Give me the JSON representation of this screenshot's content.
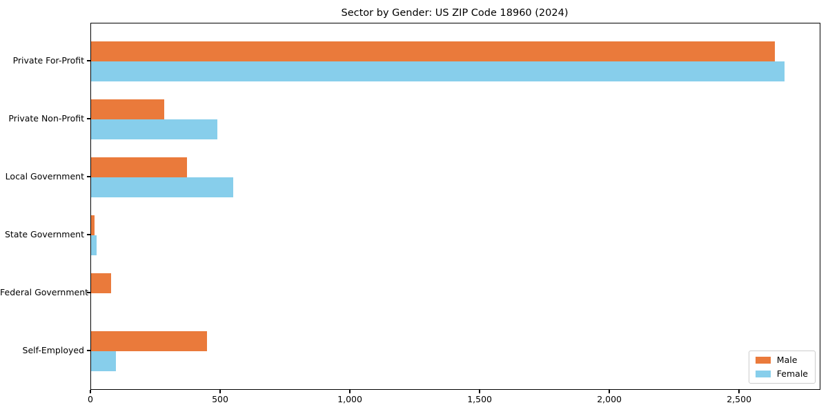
{
  "title": "Sector by Gender: US ZIP Code 18960 (2024)",
  "chart_data": {
    "type": "bar",
    "orientation": "horizontal",
    "title": "Sector by Gender: US ZIP Code 18960 (2024)",
    "categories": [
      "Private For-Profit",
      "Private Non-Profit",
      "Local Government",
      "State Government",
      "Federal Government",
      "Self-Employed"
    ],
    "series": [
      {
        "name": "Male",
        "color": "#ea7a3b",
        "values": [
          2636,
          282,
          370,
          12,
          77,
          447
        ]
      },
      {
        "name": "Female",
        "color": "#87ceeb",
        "values": [
          2672,
          486,
          549,
          21,
          0,
          96
        ]
      }
    ],
    "xlabel": "",
    "ylabel": "",
    "xlim": [
      0,
      2808
    ],
    "xticks": {
      "values": [
        0,
        500,
        1000,
        1500,
        2000,
        2500
      ],
      "labels": [
        "0",
        "500",
        "1,000",
        "1,500",
        "2,000",
        "2,500"
      ]
    },
    "grid": false,
    "legend": {
      "position": "lower right",
      "entries": [
        "Male",
        "Female"
      ]
    }
  }
}
